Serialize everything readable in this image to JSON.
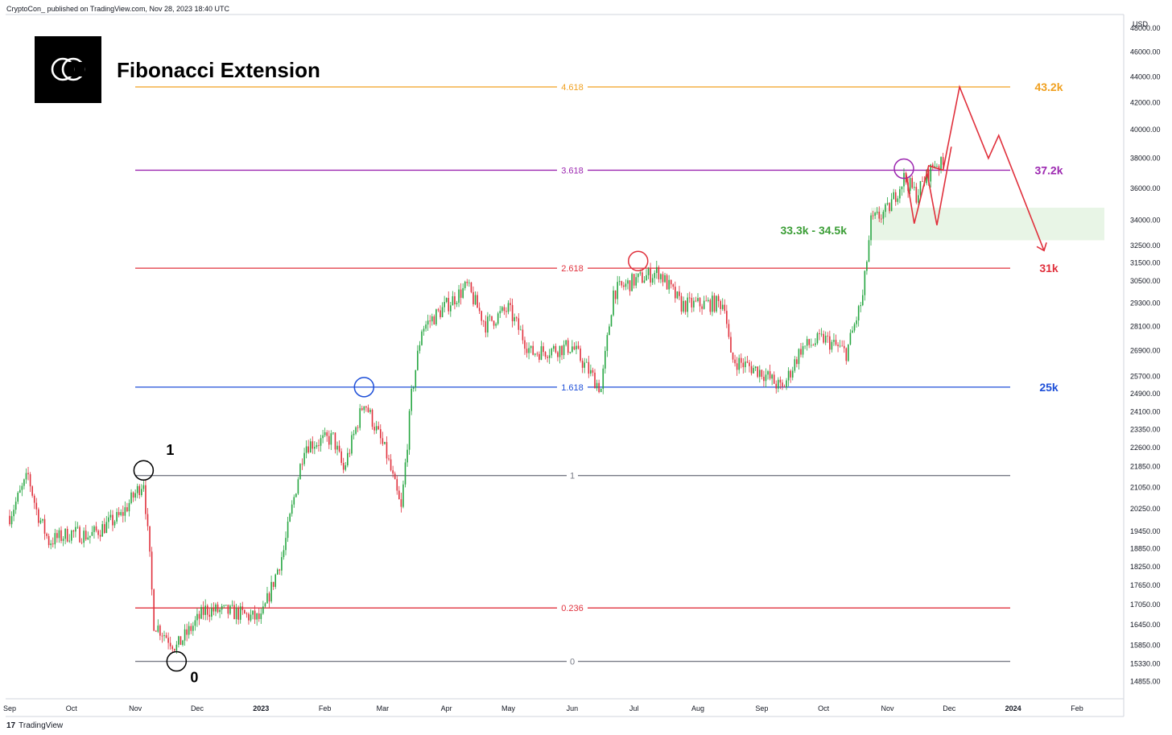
{
  "header": {
    "published": "CryptoCon_ published on TradingView.com, Nov 28, 2023 18:40 UTC"
  },
  "footer": {
    "brand_mark": "17",
    "brand": "TradingView"
  },
  "logo": {
    "glyph": "CC"
  },
  "colors": {
    "up": "#26a641",
    "down": "#e0303c",
    "orange": "#f0a020",
    "purple": "#9c27b0",
    "red": "#e0303c",
    "blue": "#1e4fd8",
    "green": "#3a9d35",
    "gray": "#787b86"
  },
  "chart_data": {
    "type": "candlestick",
    "title": "Fibonacci Extension",
    "currency": "USD",
    "y_scale": "log",
    "ylim": [
      14400,
      49200
    ],
    "x_ticks": [
      {
        "label": "Sep",
        "date": "2022-09-01"
      },
      {
        "label": "Oct",
        "date": "2022-10-01"
      },
      {
        "label": "Nov",
        "date": "2022-11-01"
      },
      {
        "label": "Dec",
        "date": "2022-12-01"
      },
      {
        "label": "2023",
        "date": "2023-01-01"
      },
      {
        "label": "Feb",
        "date": "2023-02-01"
      },
      {
        "label": "Mar",
        "date": "2023-03-01"
      },
      {
        "label": "Apr",
        "date": "2023-04-01"
      },
      {
        "label": "May",
        "date": "2023-05-01"
      },
      {
        "label": "Jun",
        "date": "2023-06-01"
      },
      {
        "label": "Jul",
        "date": "2023-07-01"
      },
      {
        "label": "Aug",
        "date": "2023-08-01"
      },
      {
        "label": "Sep",
        "date": "2023-09-01"
      },
      {
        "label": "Oct",
        "date": "2023-10-01"
      },
      {
        "label": "Nov",
        "date": "2023-11-01"
      },
      {
        "label": "Dec",
        "date": "2023-12-01"
      },
      {
        "label": "2024",
        "date": "2024-01-01"
      },
      {
        "label": "Feb",
        "date": "2024-02-01"
      }
    ],
    "y_ticks": [
      "48000.00",
      "46000.00",
      "44000.00",
      "42000.00",
      "40000.00",
      "38000.00",
      "36000.00",
      "34000.00",
      "32500.00",
      "31500.00",
      "30500.00",
      "29300.00",
      "28100.00",
      "26900.00",
      "25700.00",
      "24900.00",
      "24100.00",
      "23350.00",
      "22600.00",
      "21850.00",
      "21050.00",
      "20250.00",
      "19450.00",
      "18850.00",
      "18250.00",
      "17650.00",
      "17050.00",
      "16450.00",
      "15850.00",
      "15330.00",
      "14855.00"
    ],
    "series": [
      {
        "date": "2022-09-01",
        "close": 20000
      },
      {
        "date": "2022-09-10",
        "close": 21500
      },
      {
        "date": "2022-09-14",
        "close": 20200
      },
      {
        "date": "2022-09-20",
        "close": 19100
      },
      {
        "date": "2022-10-01",
        "close": 19400
      },
      {
        "date": "2022-10-10",
        "close": 19300
      },
      {
        "date": "2022-10-25",
        "close": 20000
      },
      {
        "date": "2022-11-05",
        "close": 21300
      },
      {
        "date": "2022-11-08",
        "close": 18500
      },
      {
        "date": "2022-11-10",
        "close": 16500
      },
      {
        "date": "2022-11-21",
        "close": 15800
      },
      {
        "date": "2022-12-05",
        "close": 16900
      },
      {
        "date": "2022-12-20",
        "close": 16800
      },
      {
        "date": "2023-01-01",
        "close": 16600
      },
      {
        "date": "2023-01-12",
        "close": 18800
      },
      {
        "date": "2023-01-22",
        "close": 22700
      },
      {
        "date": "2023-02-05",
        "close": 23000
      },
      {
        "date": "2023-02-10",
        "close": 21700
      },
      {
        "date": "2023-02-20",
        "close": 24600
      },
      {
        "date": "2023-03-03",
        "close": 22300
      },
      {
        "date": "2023-03-10",
        "close": 20200
      },
      {
        "date": "2023-03-15",
        "close": 24800
      },
      {
        "date": "2023-03-20",
        "close": 28000
      },
      {
        "date": "2023-04-11",
        "close": 30200
      },
      {
        "date": "2023-04-20",
        "close": 28200
      },
      {
        "date": "2023-05-01",
        "close": 29000
      },
      {
        "date": "2023-05-12",
        "close": 26800
      },
      {
        "date": "2023-06-01",
        "close": 27100
      },
      {
        "date": "2023-06-15",
        "close": 25100
      },
      {
        "date": "2023-06-21",
        "close": 29900
      },
      {
        "date": "2023-07-01",
        "close": 30500
      },
      {
        "date": "2023-07-13",
        "close": 31000
      },
      {
        "date": "2023-07-24",
        "close": 29200
      },
      {
        "date": "2023-08-14",
        "close": 29300
      },
      {
        "date": "2023-08-17",
        "close": 26500
      },
      {
        "date": "2023-09-01",
        "close": 25900
      },
      {
        "date": "2023-09-11",
        "close": 25100
      },
      {
        "date": "2023-09-20",
        "close": 27000
      },
      {
        "date": "2023-10-01",
        "close": 27500
      },
      {
        "date": "2023-10-12",
        "close": 26800
      },
      {
        "date": "2023-10-20",
        "close": 29600
      },
      {
        "date": "2023-10-24",
        "close": 33900
      },
      {
        "date": "2023-11-01",
        "close": 34600
      },
      {
        "date": "2023-11-09",
        "close": 36700
      },
      {
        "date": "2023-11-15",
        "close": 35600
      },
      {
        "date": "2023-11-24",
        "close": 37700
      },
      {
        "date": "2023-11-28",
        "close": 37500
      }
    ],
    "fib_levels": [
      {
        "label": "4.618",
        "price": 43200,
        "color": "#f0a020",
        "side_label": "43.2k"
      },
      {
        "label": "3.618",
        "price": 37200,
        "color": "#9c27b0",
        "side_label": "37.2k"
      },
      {
        "label": "2.618",
        "price": 31200,
        "color": "#e0303c",
        "side_label": "31k"
      },
      {
        "label": "1.618",
        "price": 25200,
        "color": "#1e4fd8",
        "side_label": "25k"
      },
      {
        "label": "1",
        "price": 21500,
        "color": "#787b86",
        "side_label": ""
      },
      {
        "label": "0.236",
        "price": 16950,
        "color": "#e0303c",
        "side_label": ""
      },
      {
        "label": "0",
        "price": 15400,
        "color": "#787b86",
        "side_label": ""
      }
    ],
    "annotations": {
      "point_1": {
        "text": "1",
        "date": "2022-11-05",
        "price": 21800
      },
      "point_0": {
        "text": "0",
        "date": "2022-11-21",
        "price": 15400
      },
      "zone": {
        "text": "33.3k - 34.5k",
        "low": 33300,
        "high": 34500,
        "from": "2023-10-24",
        "to": "2024-01-20"
      },
      "circles": [
        {
          "date": "2022-11-05",
          "price": 21700,
          "color": "#000000"
        },
        {
          "date": "2022-11-21",
          "price": 15400,
          "color": "#000000"
        },
        {
          "date": "2023-02-20",
          "price": 25200,
          "color": "#1e4fd8"
        },
        {
          "date": "2023-07-03",
          "price": 31600,
          "color": "#e0303c"
        },
        {
          "date": "2023-11-09",
          "price": 37300,
          "color": "#9c27b0"
        }
      ],
      "projection_path": [
        {
          "date": "2023-11-10",
          "price": 37000
        },
        {
          "date": "2023-11-14",
          "price": 33800
        },
        {
          "date": "2023-11-21",
          "price": 37500
        },
        {
          "date": "2023-11-28",
          "price": 37200
        },
        {
          "date": "2023-12-06",
          "price": 43200
        },
        {
          "date": "2023-12-20",
          "price": 38000
        },
        {
          "date": "2023-12-25",
          "price": 39600
        },
        {
          "date": "2024-01-16",
          "price": 32200
        }
      ],
      "projection_path_2": [
        {
          "date": "2023-11-20",
          "price": 37200
        },
        {
          "date": "2023-11-25",
          "price": 33700
        },
        {
          "date": "2023-12-02",
          "price": 38800
        }
      ]
    }
  }
}
